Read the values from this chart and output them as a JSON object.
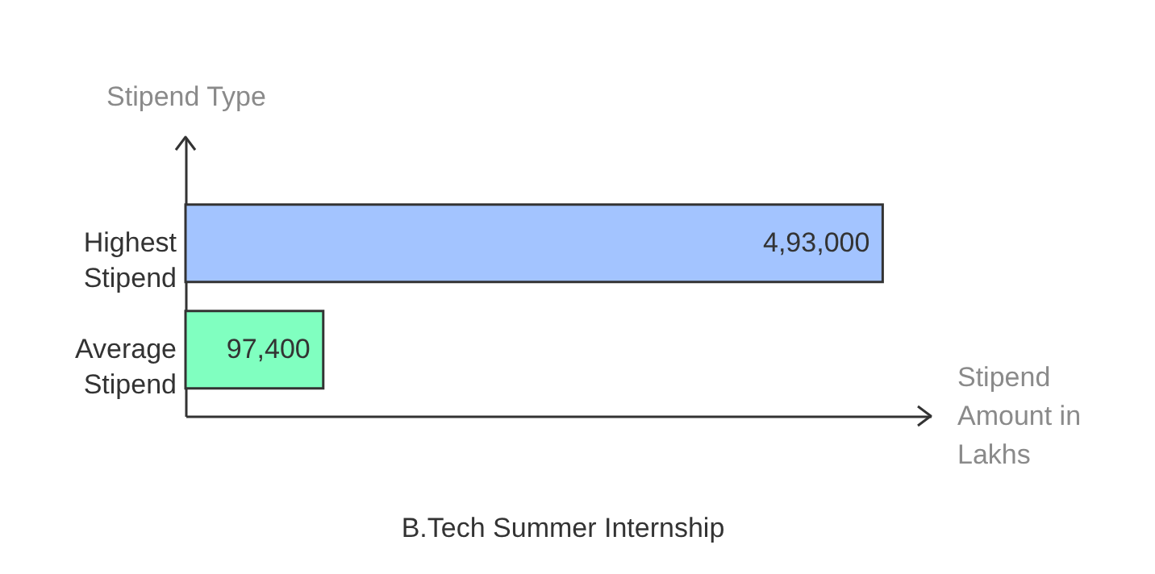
{
  "chart_data": {
    "type": "bar",
    "orientation": "horizontal",
    "title": "B.Tech Summer Internship",
    "xlabel": "Stipend Amount in Lakhs",
    "ylabel": "Stipend Type",
    "categories": [
      "Highest Stipend",
      "Average Stipend"
    ],
    "values": [
      493000,
      97400
    ],
    "colors": [
      "#a3c4ff",
      "#80ffc0"
    ],
    "value_labels": [
      "4,93,000",
      "97,400"
    ],
    "xlim": [
      0,
      527000
    ],
    "tick_labels": "y",
    "grid": false
  }
}
